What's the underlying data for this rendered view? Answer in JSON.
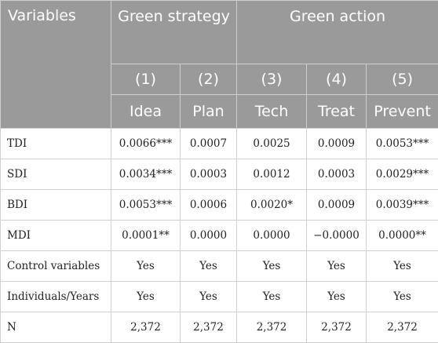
{
  "header": {
    "variables_label": "Variables",
    "group_strategy": "Green strategy",
    "group_action": "Green action",
    "model_numbers": [
      "(1)",
      "(2)",
      "(3)",
      "(4)",
      "(5)"
    ],
    "model_names": [
      "Idea",
      "Plan",
      "Tech",
      "Treat",
      "Prevent"
    ]
  },
  "rows": [
    {
      "label": "TDI",
      "values": [
        "0.0066***",
        "0.0007",
        "0.0025",
        "0.0009",
        "0.0053***"
      ]
    },
    {
      "label": "SDI",
      "values": [
        "0.0034***",
        "0.0003",
        "0.0012",
        "0.0003",
        "0.0029***"
      ]
    },
    {
      "label": "BDI",
      "values": [
        "0.0053***",
        "0.0006",
        "0.0020*",
        "0.0009",
        "0.0039***"
      ]
    },
    {
      "label": "MDI",
      "values": [
        "0.0001**",
        "0.0000",
        "0.0000",
        "−0.0000",
        "0.0000**"
      ]
    },
    {
      "label": "Control variables",
      "values": [
        "Yes",
        "Yes",
        "Yes",
        "Yes",
        "Yes"
      ]
    },
    {
      "label": "Individuals/Years",
      "values": [
        "Yes",
        "Yes",
        "Yes",
        "Yes",
        "Yes"
      ]
    },
    {
      "label": "N",
      "values": [
        "2,372",
        "2,372",
        "2,372",
        "2,372",
        "2,372"
      ]
    }
  ],
  "colors": {
    "header_bg": "#9a9a9a",
    "header_text": "#ffffff",
    "grid": "#cfcfcf"
  }
}
